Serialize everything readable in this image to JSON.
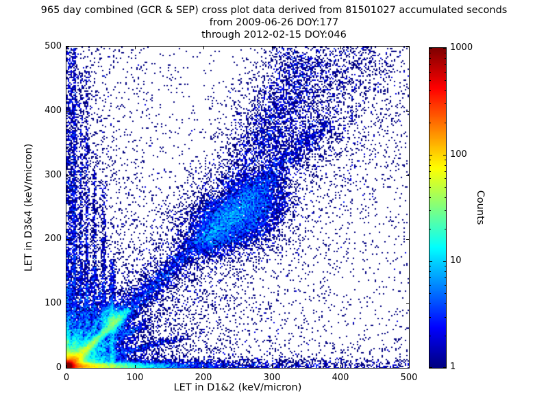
{
  "title": {
    "line1": "965 day combined (GCR & SEP) cross plot data derived from 81501027 accumulated seconds",
    "line2": "from 2009-06-26 DOY:177",
    "line3": "through 2012-02-15 DOY:046"
  },
  "chart_data": {
    "type": "heatmap",
    "title": "965 day combined (GCR & SEP) cross plot data derived from 81501027 accumulated seconds from 2009-06-26 DOY:177 through 2012-02-15 DOY:046",
    "xlabel": "LET in D1&2 (keV/micron)",
    "ylabel": "LET in D3&4 (keV/micron)",
    "xlim": [
      0,
      500
    ],
    "ylim": [
      0,
      500
    ],
    "x_ticks": [
      0,
      100,
      200,
      300,
      400,
      500
    ],
    "y_ticks": [
      0,
      100,
      200,
      300,
      400,
      500
    ],
    "grid": false,
    "colorbar": {
      "label": "Counts",
      "scale": "log",
      "min": 1,
      "max": 1000,
      "ticks": [
        1,
        10,
        100,
        1000
      ],
      "colormap": "jet"
    },
    "representation": "log-scaled 2D density of LET coincidence counts; rendered from the mixture model below",
    "density_features": [
      {
        "kind": "blob",
        "cx": 2,
        "cy": 2,
        "sx": 4,
        "sy": 4,
        "peak": 1400
      },
      {
        "kind": "blob",
        "cx": 4,
        "cy": 4,
        "sx": 10,
        "sy": 9,
        "peak": 160
      },
      {
        "kind": "blob",
        "cx": 6,
        "cy": 6,
        "sx": 26,
        "sy": 24,
        "peak": 16
      },
      {
        "kind": "blob",
        "cx": 8,
        "cy": 8,
        "sx": 60,
        "sy": 55,
        "peak": 2.2
      },
      {
        "kind": "blob",
        "cx": 68,
        "cy": 74,
        "sx": 9,
        "sy": 10,
        "peak": 18
      },
      {
        "kind": "blob",
        "cx": 245,
        "cy": 232,
        "sx": 30,
        "sy": 22,
        "peak": 5
      },
      {
        "kind": "blob",
        "cx": 212,
        "cy": 200,
        "sx": 20,
        "sy": 16,
        "peak": 3
      },
      {
        "kind": "blob",
        "cx": 282,
        "cy": 265,
        "sx": 24,
        "sy": 20,
        "peak": 2.5
      },
      {
        "kind": "ridge",
        "x0": 0,
        "y0": 0,
        "x1": 88,
        "y1": 88,
        "w": 3.5,
        "peak": 90,
        "tscale": 55
      },
      {
        "kind": "ridge",
        "x0": 60,
        "y0": 60,
        "x1": 370,
        "y1": 370,
        "w": 9,
        "peak": 2.8,
        "tscale": 420
      },
      {
        "kind": "ridge",
        "x0": 255,
        "y0": 275,
        "x1": 345,
        "y1": 480,
        "w": 24,
        "peak": 0.9,
        "tscale": 800
      },
      {
        "kind": "ridge",
        "x0": 300,
        "y0": 340,
        "x1": 430,
        "y1": 500,
        "w": 45,
        "peak": 0.28,
        "tscale": 900
      },
      {
        "kind": "ridge",
        "x0": 0,
        "y0": 2,
        "x1": 500,
        "y1": 2,
        "w": 3.5,
        "peak": 200,
        "tscale": 40
      },
      {
        "kind": "ridge",
        "x0": 0,
        "y0": 3,
        "x1": 500,
        "y1": 3,
        "w": 6,
        "peak": 2.5,
        "tscale": 320
      },
      {
        "kind": "ridge",
        "x0": 2,
        "y0": 0,
        "x1": 2,
        "y1": 500,
        "w": 2.5,
        "peak": 30,
        "tscale": 40
      },
      {
        "kind": "ridge",
        "x0": 5,
        "y0": 0,
        "x1": 5,
        "y1": 500,
        "w": 5,
        "peak": 1.4,
        "tscale": 700
      },
      {
        "kind": "ridge",
        "x0": 0,
        "y0": 0,
        "x1": 65,
        "y1": 100,
        "w": 2.6,
        "peak": 14,
        "tscale": 60
      },
      {
        "kind": "ridge",
        "x0": 0,
        "y0": 0,
        "x1": 52,
        "y1": 125,
        "w": 2.6,
        "peak": 9,
        "tscale": 60
      },
      {
        "kind": "ridge",
        "x0": 0,
        "y0": 0,
        "x1": 42,
        "y1": 150,
        "w": 2.4,
        "peak": 7,
        "tscale": 65
      },
      {
        "kind": "ridge",
        "x0": 0,
        "y0": 0,
        "x1": 120,
        "y1": 72,
        "w": 3,
        "peak": 9,
        "tscale": 80
      },
      {
        "kind": "ridge",
        "x0": 0,
        "y0": 0,
        "x1": 170,
        "y1": 48,
        "w": 3,
        "peak": 5,
        "tscale": 110
      },
      {
        "kind": "vline",
        "cx": 30,
        "w": 2,
        "y0": 0,
        "y1": 470,
        "peak": 2.6,
        "yscale": 320
      },
      {
        "kind": "vline",
        "cx": 41,
        "w": 2,
        "y0": 0,
        "y1": 340,
        "peak": 3,
        "yscale": 200
      },
      {
        "kind": "vline",
        "cx": 54,
        "w": 2.2,
        "y0": 0,
        "y1": 290,
        "peak": 3.2,
        "yscale": 190
      },
      {
        "kind": "vline",
        "cx": 67,
        "w": 2.5,
        "y0": 0,
        "y1": 170,
        "peak": 8,
        "yscale": 110
      },
      {
        "kind": "vline",
        "cx": 21,
        "w": 1.8,
        "y0": 0,
        "y1": 460,
        "peak": 2.2,
        "yscale": 380
      },
      {
        "kind": "vline",
        "cx": 12,
        "w": 1.8,
        "y0": 0,
        "y1": 500,
        "peak": 3,
        "yscale": 420
      },
      {
        "kind": "diagfan",
        "wbase": 16,
        "wgrow": 0.3,
        "peak": 0.5,
        "xs": 280
      },
      {
        "kind": "decay2d",
        "peak": 0.5,
        "xs": 70,
        "ys": 420
      },
      {
        "kind": "decay2d",
        "peak": 0.35,
        "xs": 420,
        "ys": 55
      },
      {
        "kind": "uniform",
        "peak": 0.016
      }
    ]
  },
  "colors": {
    "background": "#ffffff",
    "frame": "#000000",
    "text": "#000000"
  }
}
